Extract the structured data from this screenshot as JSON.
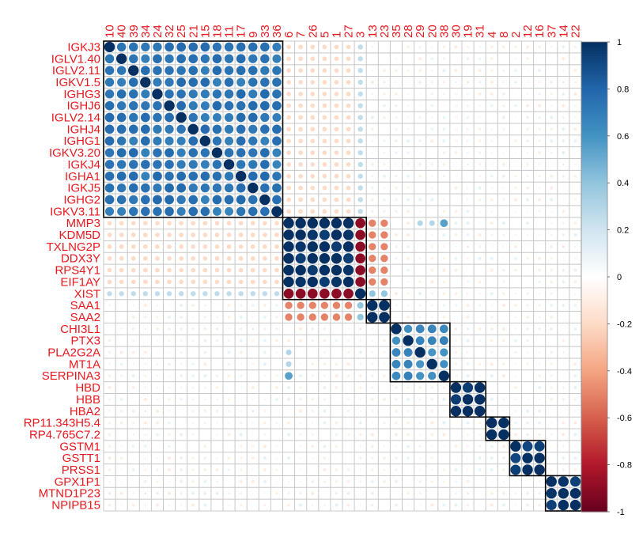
{
  "chart_data": {
    "type": "heatmap",
    "chart_style": "correlation matrix, circle glyphs sized and colored by correlation, hierarchical-cluster rectangles",
    "rows": [
      "IGKJ3",
      "IGLV1.40",
      "IGLV2.11",
      "IGKV1.5",
      "IGHG3",
      "IGHJ6",
      "IGLV2.14",
      "IGHJ4",
      "IGHG1",
      "IGKV3.20",
      "IGKJ4",
      "IGHA1",
      "IGKJ5",
      "IGHG2",
      "IGKV3.11",
      "MMP3",
      "KDM5D",
      "TXLNG2P",
      "DDX3Y",
      "RPS4Y1",
      "EIF1AY",
      "XIST",
      "SAA1",
      "SAA2",
      "CHI3L1",
      "PTX3",
      "PLA2G2A",
      "MT1A",
      "SERPINA3",
      "HBD",
      "HBB",
      "HBA2",
      "RP11.343H5.4",
      "RP4.765C7.2",
      "GSTM1",
      "GSTT1",
      "PRSS1",
      "GPX1P1",
      "MTND1P23",
      "NPIPB15"
    ],
    "columns": [
      "10",
      "40",
      "39",
      "34",
      "24",
      "32",
      "25",
      "21",
      "15",
      "18",
      "11",
      "17",
      "9",
      "33",
      "36",
      "6",
      "7",
      "26",
      "5",
      "1",
      "27",
      "3",
      "13",
      "23",
      "35",
      "28",
      "29",
      "20",
      "38",
      "30",
      "19",
      "31",
      "4",
      "8",
      "2",
      "12",
      "16",
      "37",
      "14",
      "22"
    ],
    "clusters": [
      [
        0,
        14
      ],
      [
        15,
        21
      ],
      [
        22,
        23
      ],
      [
        24,
        28
      ],
      [
        29,
        31
      ],
      [
        32,
        33
      ],
      [
        34,
        36
      ],
      [
        37,
        39
      ]
    ],
    "within_cluster_correlation": [
      0.72,
      0.98,
      0.95,
      0.62,
      0.98,
      0.98,
      0.96,
      0.96
    ],
    "diagonal_correlation": 1,
    "special_values": [
      {
        "row": "XIST",
        "columns": [
          "6",
          "7",
          "26",
          "5",
          "1",
          "27"
        ],
        "value": -0.9
      },
      {
        "row": "XIST",
        "columns": [
          "3"
        ],
        "value": 0.95
      },
      {
        "rows": [
          "KDM5D",
          "TXLNG2P",
          "DDX3Y",
          "RPS4Y1",
          "EIF1AY"
        ],
        "columns": [
          "3"
        ],
        "value": -0.85
      },
      {
        "rows": [
          "KDM5D",
          "TXLNG2P",
          "DDX3Y",
          "RPS4Y1",
          "EIF1AY"
        ],
        "columns": [
          "13",
          "23"
        ],
        "value": -0.45
      },
      {
        "rows": [
          "SAA1",
          "SAA2"
        ],
        "columns": [
          "6",
          "7",
          "26",
          "5",
          "1",
          "27"
        ],
        "value": -0.5
      },
      {
        "rows": [
          "SAA1",
          "SAA2"
        ],
        "columns": [
          "3"
        ],
        "value": 0.4
      },
      {
        "row": "MMP3",
        "columns": [
          "38"
        ],
        "value": 0.55
      },
      {
        "row": "MMP3",
        "columns": [
          "29",
          "20"
        ],
        "value": 0.3
      },
      {
        "rows": [
          "PLA2G2A",
          "MT1A",
          "SERPINA3"
        ],
        "columns": [
          "6"
        ],
        "value": 0.3
      },
      {
        "row": "SERPINA3",
        "columns": [
          "6"
        ],
        "value": 0.55
      },
      {
        "rows": [
          "IGKJ3",
          "IGLV1.40",
          "IGLV2.11",
          "IGKV1.5",
          "IGHG3",
          "IGHJ6",
          "IGLV2.14",
          "IGHJ4",
          "IGHG1",
          "IGKV3.20",
          "IGKJ4",
          "IGHA1",
          "IGKJ5",
          "IGHG2",
          "IGKV3.11"
        ],
        "columns": [
          "6",
          "7",
          "26",
          "5",
          "1",
          "27"
        ],
        "value": -0.2
      },
      {
        "rows": [
          "IGKJ3",
          "IGLV1.40",
          "IGLV2.11",
          "IGKV1.5",
          "IGHG3",
          "IGHJ6",
          "IGLV2.14",
          "IGHJ4",
          "IGHG1",
          "IGKV3.20",
          "IGKJ4",
          "IGHA1",
          "IGKJ5",
          "IGHG2",
          "IGKV3.11"
        ],
        "columns": [
          "3"
        ],
        "value": 0.25
      }
    ],
    "colorbar": {
      "ticks": [
        1,
        0.8,
        0.6,
        0.4,
        0.2,
        0,
        -0.2,
        -0.4,
        -0.6,
        -0.8,
        -1
      ],
      "tick_labels": [
        "1",
        "0.8",
        "0.6",
        "0.4",
        "0.2",
        "0",
        "-0.2",
        "-0.4",
        "-0.6",
        "-0.8",
        "-1"
      ],
      "range": [
        -1,
        1
      ],
      "colors": [
        "#67001F",
        "#B2182B",
        "#D6604D",
        "#F4A582",
        "#FDDBC7",
        "#FFFFFF",
        "#D1E5F0",
        "#92C5DE",
        "#4393C3",
        "#2166AC",
        "#053061"
      ]
    },
    "label_color": "#E8191F",
    "grid_color": "#C8C8C8",
    "cluster_rect_color": "#000000"
  }
}
